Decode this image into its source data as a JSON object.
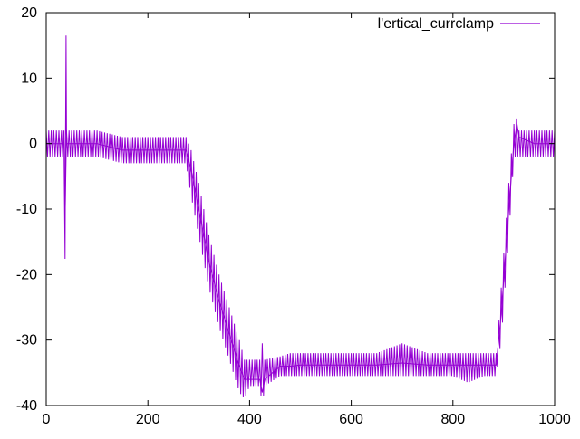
{
  "chart_data": {
    "type": "line",
    "title": "",
    "xlabel": "",
    "ylabel": "",
    "xlim": [
      0,
      1000
    ],
    "ylim": [
      -40,
      20
    ],
    "xticks": [
      0,
      200,
      400,
      600,
      800,
      1000
    ],
    "yticks": [
      -40,
      -30,
      -20,
      -10,
      0,
      10,
      20
    ],
    "grid": false,
    "legend_position": "top-right",
    "series": [
      {
        "name": "l'ertical_currclamp",
        "color": "#9400d3",
        "x": [
          0,
          35,
          37,
          38,
          39,
          40,
          41,
          44,
          100,
          150,
          200,
          250,
          275,
          285,
          300,
          320,
          340,
          360,
          380,
          390,
          400,
          420,
          425,
          430,
          460,
          480,
          500,
          550,
          600,
          650,
          700,
          750,
          800,
          830,
          860,
          885,
          895,
          910,
          920,
          926,
          930,
          945,
          960,
          980,
          1000
        ],
        "y": [
          0,
          0,
          -17.6,
          0,
          16.5,
          1.5,
          0,
          0,
          0,
          -1,
          -1,
          -1,
          -1,
          -4,
          -10,
          -18,
          -24,
          -29,
          -34,
          -36,
          -36,
          -36,
          -38,
          -36,
          -34,
          -34,
          -33.8,
          -33.8,
          -33.8,
          -33.8,
          -33.5,
          -33.8,
          -33.8,
          -33.8,
          -33.8,
          -33.8,
          -26,
          -10,
          0,
          3,
          1,
          0.5,
          0,
          0,
          0
        ],
        "band_low": [
          -2,
          -2,
          -17.6,
          -2,
          -2,
          -2,
          -2,
          -2,
          -2,
          -3,
          -3,
          -3,
          -3,
          -8,
          -14,
          -22,
          -28,
          -33,
          -38,
          -39,
          -37,
          -37,
          -40,
          -37,
          -35.5,
          -35.5,
          -35.5,
          -35.5,
          -35.5,
          -35.5,
          -35.5,
          -35.5,
          -35.5,
          -36.5,
          -35.5,
          -35.5,
          -30,
          -14,
          -2,
          -2,
          -2,
          -2,
          -2,
          -2,
          -2
        ],
        "band_high": [
          2,
          2,
          -17.6,
          2,
          16.5,
          2,
          2,
          2,
          2,
          1,
          1,
          1,
          1,
          -1,
          -6,
          -14,
          -20,
          -25,
          -30,
          -33,
          -33,
          -33,
          -30.5,
          -33,
          -32.5,
          -32,
          -32,
          -32,
          -32,
          -32,
          -30.5,
          -32,
          -32,
          -32,
          -32,
          -32,
          -22,
          -6,
          3,
          4,
          2,
          2,
          2,
          2,
          2
        ]
      }
    ]
  }
}
